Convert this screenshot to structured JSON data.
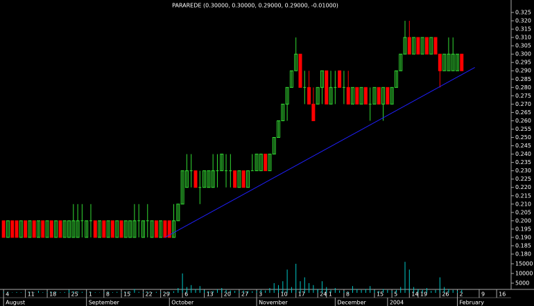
{
  "chart_data": {
    "type": "candlestick",
    "title": "PARAREDE (0.30000, 0.30000, 0.29000, 0.29000, -0.01000)",
    "up_color": "#33dd33",
    "down_color": "#ff0000",
    "volume_color": "#00c8c8",
    "trendline_color": "#2020ff",
    "xlim": [
      -0.5,
      116
    ],
    "ylim": [
      0.18,
      0.325
    ],
    "vol_ylim": [
      0,
      20000
    ],
    "open": [
      0.2,
      0.19,
      0.2,
      0.2,
      0.19,
      0.2,
      0.19,
      0.2,
      0.19,
      0.2,
      0.19,
      0.2,
      0.19,
      0.2,
      0.19,
      0.19,
      0.19,
      0.19,
      0.2,
      0.19,
      0.2,
      0.2,
      0.19,
      0.2,
      0.19,
      0.2,
      0.19,
      0.2,
      0.19,
      0.19,
      0.19,
      0.2,
      0.19,
      0.2,
      0.19,
      0.2,
      0.19,
      0.2,
      0.2,
      0.19,
      0.2,
      0.21,
      0.22,
      0.23,
      0.23,
      0.22,
      0.22,
      0.22,
      0.22,
      0.23,
      0.23,
      0.23,
      0.23,
      0.23,
      0.22,
      0.23,
      0.22,
      0.23,
      0.23,
      0.23,
      0.24,
      0.23,
      0.24,
      0.25,
      0.26,
      0.27,
      0.28,
      0.29,
      0.3,
      0.28,
      0.28,
      0.27,
      0.27,
      0.28,
      0.29,
      0.27,
      0.28,
      0.29,
      0.28,
      0.28,
      0.27,
      0.28,
      0.27,
      0.28,
      0.27,
      0.27,
      0.28,
      0.27,
      0.28,
      0.27,
      0.28,
      0.29,
      0.3,
      0.31,
      0.3,
      0.31,
      0.3,
      0.31,
      0.3,
      0.31,
      0.3,
      0.29,
      0.29,
      0.29,
      0.29,
      0.3
    ],
    "high": [
      0.2,
      0.2,
      0.2,
      0.2,
      0.2,
      0.2,
      0.2,
      0.2,
      0.2,
      0.2,
      0.2,
      0.2,
      0.2,
      0.2,
      0.2,
      0.2,
      0.21,
      0.21,
      0.21,
      0.2,
      0.21,
      0.2,
      0.2,
      0.2,
      0.2,
      0.2,
      0.2,
      0.2,
      0.2,
      0.2,
      0.21,
      0.21,
      0.2,
      0.21,
      0.2,
      0.2,
      0.2,
      0.2,
      0.2,
      0.21,
      0.21,
      0.23,
      0.24,
      0.24,
      0.23,
      0.23,
      0.23,
      0.23,
      0.24,
      0.24,
      0.24,
      0.24,
      0.24,
      0.23,
      0.23,
      0.23,
      0.23,
      0.24,
      0.24,
      0.24,
      0.24,
      0.24,
      0.25,
      0.26,
      0.27,
      0.28,
      0.29,
      0.31,
      0.3,
      0.29,
      0.29,
      0.28,
      0.28,
      0.29,
      0.29,
      0.29,
      0.29,
      0.29,
      0.29,
      0.29,
      0.28,
      0.28,
      0.28,
      0.28,
      0.28,
      0.28,
      0.28,
      0.28,
      0.28,
      0.28,
      0.29,
      0.3,
      0.32,
      0.32,
      0.31,
      0.31,
      0.31,
      0.31,
      0.31,
      0.31,
      0.3,
      0.3,
      0.31,
      0.31,
      0.3,
      0.3
    ],
    "low": [
      0.19,
      0.19,
      0.19,
      0.19,
      0.19,
      0.19,
      0.19,
      0.19,
      0.19,
      0.19,
      0.19,
      0.19,
      0.19,
      0.19,
      0.19,
      0.19,
      0.19,
      0.19,
      0.19,
      0.19,
      0.19,
      0.19,
      0.19,
      0.19,
      0.19,
      0.19,
      0.19,
      0.19,
      0.19,
      0.19,
      0.19,
      0.19,
      0.19,
      0.19,
      0.19,
      0.19,
      0.19,
      0.19,
      0.19,
      0.19,
      0.2,
      0.21,
      0.22,
      0.22,
      0.22,
      0.21,
      0.22,
      0.22,
      0.22,
      0.22,
      0.23,
      0.22,
      0.22,
      0.22,
      0.22,
      0.22,
      0.22,
      0.23,
      0.23,
      0.23,
      0.23,
      0.23,
      0.24,
      0.25,
      0.26,
      0.26,
      0.28,
      0.29,
      0.28,
      0.27,
      0.27,
      0.26,
      0.27,
      0.27,
      0.27,
      0.27,
      0.27,
      0.28,
      0.27,
      0.27,
      0.27,
      0.27,
      0.27,
      0.27,
      0.26,
      0.27,
      0.27,
      0.26,
      0.27,
      0.27,
      0.28,
      0.29,
      0.3,
      0.3,
      0.3,
      0.3,
      0.3,
      0.3,
      0.3,
      0.3,
      0.28,
      0.29,
      0.29,
      0.29,
      0.29,
      0.29
    ],
    "close": [
      0.19,
      0.2,
      0.19,
      0.19,
      0.2,
      0.19,
      0.2,
      0.19,
      0.2,
      0.19,
      0.2,
      0.19,
      0.2,
      0.19,
      0.2,
      0.2,
      0.2,
      0.2,
      0.2,
      0.2,
      0.2,
      0.19,
      0.2,
      0.19,
      0.2,
      0.19,
      0.2,
      0.19,
      0.2,
      0.2,
      0.2,
      0.2,
      0.2,
      0.2,
      0.2,
      0.19,
      0.2,
      0.19,
      0.19,
      0.2,
      0.21,
      0.23,
      0.23,
      0.23,
      0.22,
      0.22,
      0.23,
      0.23,
      0.23,
      0.23,
      0.24,
      0.23,
      0.23,
      0.22,
      0.23,
      0.22,
      0.23,
      0.23,
      0.24,
      0.24,
      0.23,
      0.24,
      0.25,
      0.26,
      0.27,
      0.28,
      0.29,
      0.3,
      0.28,
      0.28,
      0.27,
      0.26,
      0.28,
      0.29,
      0.27,
      0.28,
      0.28,
      0.28,
      0.28,
      0.27,
      0.28,
      0.27,
      0.28,
      0.27,
      0.27,
      0.28,
      0.27,
      0.28,
      0.27,
      0.28,
      0.29,
      0.3,
      0.31,
      0.3,
      0.31,
      0.3,
      0.31,
      0.3,
      0.31,
      0.3,
      0.29,
      0.3,
      0.3,
      0.3,
      0.3,
      0.29
    ],
    "volume": [
      500,
      300,
      200,
      400,
      300,
      200,
      500,
      300,
      1000,
      300,
      400,
      500,
      600,
      300,
      400,
      1500,
      800,
      600,
      500,
      300,
      400,
      300,
      200,
      300,
      400,
      300,
      500,
      300,
      400,
      600,
      2000,
      500,
      400,
      600,
      300,
      500,
      400,
      300,
      500,
      800,
      2500,
      10000,
      3000,
      4000,
      2000,
      3500,
      1500,
      800,
      1000,
      1800,
      2500,
      1500,
      1200,
      1000,
      800,
      1200,
      900,
      800,
      1000,
      1500,
      1200,
      2500,
      5000,
      4000,
      6000,
      12000,
      3000,
      15000,
      6000,
      8000,
      5000,
      4000,
      2000,
      6000,
      3000,
      1500,
      2500,
      1200,
      1000,
      500,
      3500,
      2000,
      1500,
      2000,
      3500,
      1500,
      1000,
      2000,
      1500,
      1000,
      1500,
      3000,
      16000,
      12000,
      3000,
      2000,
      1500,
      2500,
      1000,
      1500,
      8000,
      3000,
      2000,
      1500,
      1000,
      1500
    ],
    "trendline": {
      "x": [
        37,
        108
      ],
      "values": [
        0.19,
        0.292
      ]
    },
    "yticks": [
      {
        "value": 0.325,
        "label": "0.325"
      },
      {
        "value": 0.32,
        "label": "0.320"
      },
      {
        "value": 0.315,
        "label": "0.315"
      },
      {
        "value": 0.31,
        "label": "0.310"
      },
      {
        "value": 0.305,
        "label": "0.305"
      },
      {
        "value": 0.3,
        "label": "0.300"
      },
      {
        "value": 0.295,
        "label": "0.295"
      },
      {
        "value": 0.29,
        "label": "0.290"
      },
      {
        "value": 0.285,
        "label": "0.285"
      },
      {
        "value": 0.28,
        "label": "0.280"
      },
      {
        "value": 0.275,
        "label": "0.275"
      },
      {
        "value": 0.27,
        "label": "0.270"
      },
      {
        "value": 0.265,
        "label": "0.265"
      },
      {
        "value": 0.26,
        "label": "0.260"
      },
      {
        "value": 0.255,
        "label": "0.255"
      },
      {
        "value": 0.25,
        "label": "0.250"
      },
      {
        "value": 0.245,
        "label": "0.245"
      },
      {
        "value": 0.24,
        "label": "0.240"
      },
      {
        "value": 0.235,
        "label": "0.235"
      },
      {
        "value": 0.23,
        "label": "0.230"
      },
      {
        "value": 0.225,
        "label": "0.225"
      },
      {
        "value": 0.22,
        "label": "0.220"
      },
      {
        "value": 0.215,
        "label": "0.215"
      },
      {
        "value": 0.21,
        "label": "0.210"
      },
      {
        "value": 0.205,
        "label": "0.205"
      },
      {
        "value": 0.2,
        "label": "0.200"
      },
      {
        "value": 0.195,
        "label": "0.195"
      },
      {
        "value": 0.19,
        "label": "0.190"
      },
      {
        "value": 0.185,
        "label": "0.185"
      },
      {
        "value": 0.18,
        "label": "0.180"
      }
    ],
    "vol_yticks": [
      15000,
      10000,
      5000
    ],
    "xticks": [
      {
        "value": 0,
        "label": "4"
      },
      {
        "value": 5,
        "label": "11"
      },
      {
        "value": 10,
        "label": "18"
      },
      {
        "value": 15,
        "label": "25"
      },
      {
        "value": 19,
        "label": "1"
      },
      {
        "value": 23,
        "label": "8"
      },
      {
        "value": 27,
        "label": "15"
      },
      {
        "value": 32,
        "label": "22"
      },
      {
        "value": 36,
        "label": "29"
      },
      {
        "value": 41,
        "label": "6"
      },
      {
        "value": 46,
        "label": "13"
      },
      {
        "value": 50,
        "label": "20"
      },
      {
        "value": 54,
        "label": "27"
      },
      {
        "value": 58,
        "label": "3"
      },
      {
        "value": 63,
        "label": "10"
      },
      {
        "value": 67,
        "label": "17"
      },
      {
        "value": 72,
        "label": "24"
      },
      {
        "value": 74,
        "label": "1"
      },
      {
        "value": 78,
        "label": "8"
      },
      {
        "value": 85,
        "label": "15"
      },
      {
        "value": 89,
        "label": "5"
      },
      {
        "value": 93,
        "label": "14"
      },
      {
        "value": 95,
        "label": "19"
      },
      {
        "value": 100,
        "label": "26"
      },
      {
        "value": 104,
        "label": "2"
      },
      {
        "value": 109,
        "label": "9"
      },
      {
        "value": 113,
        "label": "16"
      }
    ],
    "month_ticks": [
      {
        "value": 0,
        "label": "August"
      },
      {
        "value": 19,
        "label": "September"
      },
      {
        "value": 38,
        "label": "October"
      },
      {
        "value": 58,
        "label": "November"
      },
      {
        "value": 76,
        "label": "December"
      },
      {
        "value": 88,
        "label": "2004"
      },
      {
        "value": 104,
        "label": "February"
      }
    ]
  }
}
